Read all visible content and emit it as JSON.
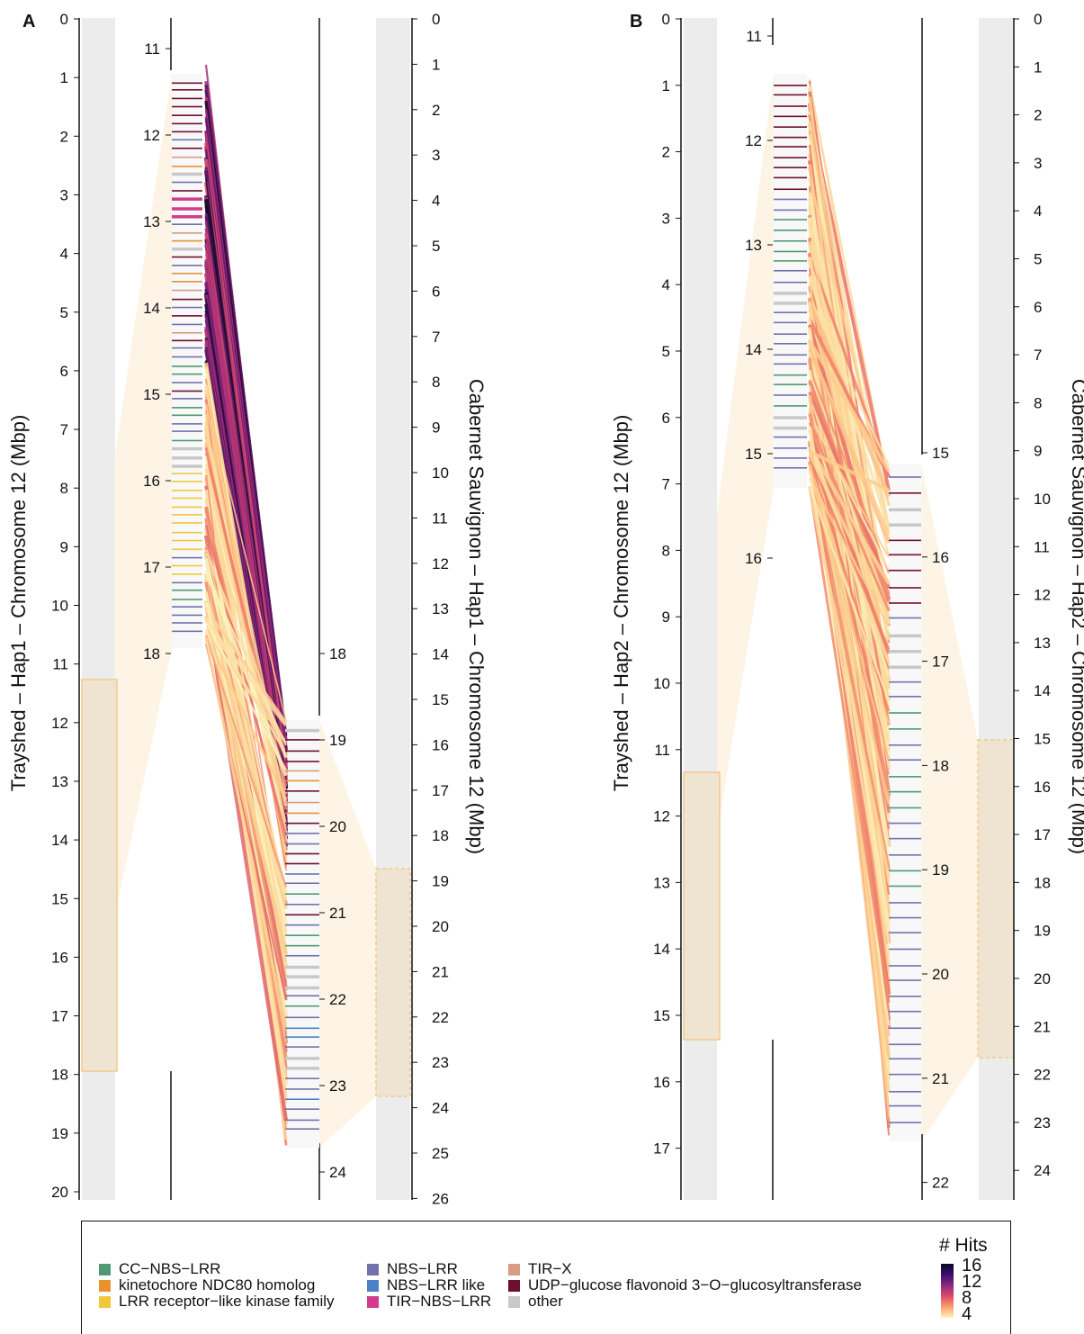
{
  "panels": [
    {
      "letter": "A",
      "left_label": "Trayshed – Hap1 – Chromosome 12 (Mbp)",
      "right_label": "Cabernet Sauvignon – Hap1 – Chromosome 12 (Mbp)",
      "left_ticks": [
        "0",
        "1",
        "2",
        "3",
        "4",
        "5",
        "6",
        "7",
        "8",
        "9",
        "10",
        "11",
        "12",
        "13",
        "14",
        "15",
        "16",
        "17",
        "18",
        "19",
        "20"
      ],
      "zoom1_ticks": [
        "11",
        "12",
        "13",
        "14",
        "15",
        "16",
        "17",
        "18"
      ],
      "zoom2_ticks": [
        "18",
        "19",
        "20",
        "21",
        "22",
        "23",
        "24"
      ],
      "right_ticks": [
        "0",
        "1",
        "2",
        "3",
        "4",
        "5",
        "6",
        "7",
        "8",
        "9",
        "10",
        "11",
        "12",
        "13",
        "14",
        "15",
        "16",
        "17",
        "18",
        "19",
        "20",
        "21",
        "22",
        "23",
        "24",
        "25",
        "26"
      ]
    },
    {
      "letter": "B",
      "left_label": "Trayshed – Hap2 – Chromosome 12 (Mbp)",
      "right_label": "Cabernet Sauvignon – Hap2 – Chromosome 12 (Mbp)",
      "left_ticks": [
        "0",
        "1",
        "2",
        "3",
        "4",
        "5",
        "6",
        "7",
        "8",
        "9",
        "10",
        "11",
        "12",
        "13",
        "14",
        "15",
        "16",
        "17"
      ],
      "zoom1_ticks": [
        "11",
        "12",
        "13",
        "14",
        "15",
        "16"
      ],
      "zoom2_ticks": [
        "15",
        "16",
        "17",
        "18",
        "19",
        "20",
        "21",
        "22"
      ],
      "right_ticks": [
        "0",
        "1",
        "2",
        "3",
        "4",
        "5",
        "6",
        "7",
        "8",
        "9",
        "10",
        "11",
        "12",
        "13",
        "14",
        "15",
        "16",
        "17",
        "18",
        "19",
        "20",
        "21",
        "22",
        "23",
        "24"
      ]
    }
  ],
  "legend": {
    "columns": [
      [
        {
          "label": "CC−NBS−LRR",
          "color": "#4f9a72"
        },
        {
          "label": "kinetochore NDC80 homolog",
          "color": "#e8922e"
        },
        {
          "label": "LRR receptor−like kinase family",
          "color": "#f2c73a"
        }
      ],
      [
        {
          "label": "NBS−LRR",
          "color": "#7272ac"
        },
        {
          "label": "NBS−LRR like",
          "color": "#4a82c6"
        },
        {
          "label": "TIR−NBS−LRR",
          "color": "#d33b8c"
        }
      ],
      [
        {
          "label": "TIR−X",
          "color": "#d99b82"
        },
        {
          "label": "UDP−glucose flavonoid 3−O−glucosyltransferase",
          "color": "#6e0f2e"
        },
        {
          "label": "other",
          "color": "#c8c8c8"
        }
      ]
    ],
    "hits_title": "# Hits",
    "hits_ticks": [
      "16",
      "12",
      "8",
      "4"
    ]
  }
}
